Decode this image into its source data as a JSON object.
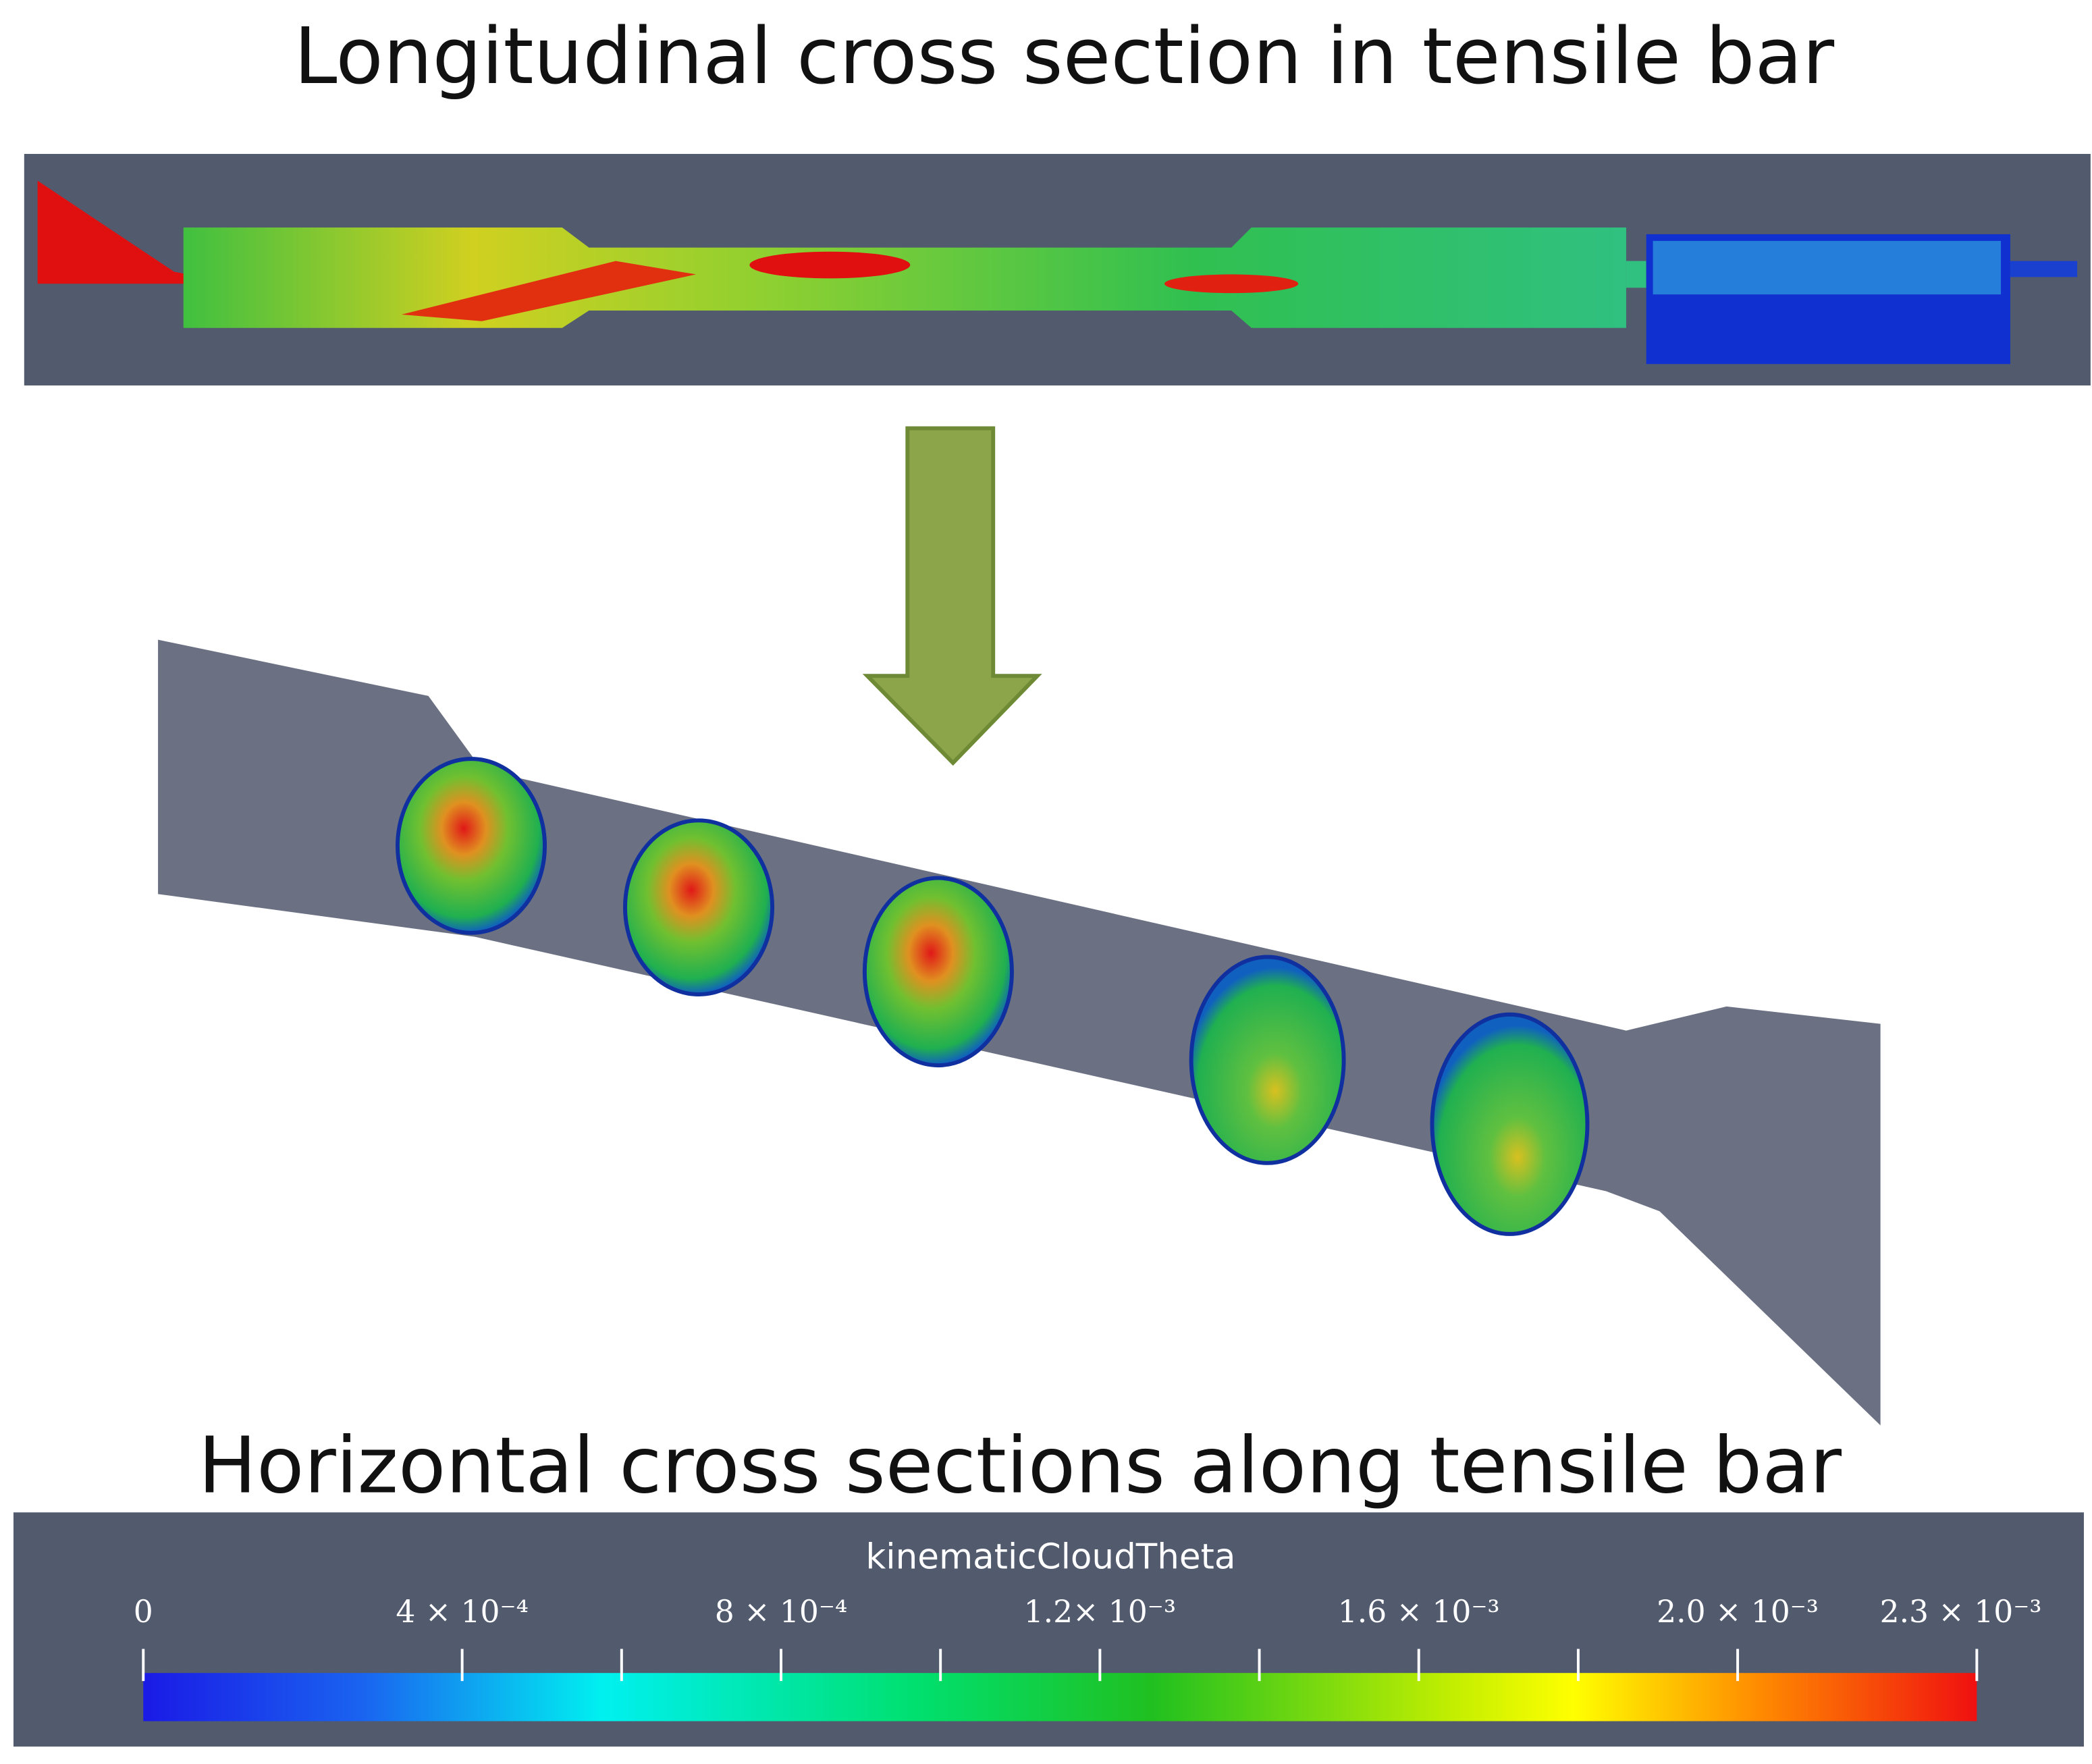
{
  "top_title": "Longitudinal cross section in tensile bar",
  "bottom_title": "Horizontal cross sections along tensile bar",
  "colorbar": {
    "title": "kinematicCloudTheta",
    "lim": [
      0,
      0.0023
    ],
    "ticks": [
      0,
      {
        "value": 0.0004,
        "label": "4 × 10⁻⁴"
      },
      {
        "value": 0.0008,
        "label": "8 × 10⁻⁴"
      },
      {
        "value": 0.0012,
        "label": "1.2× 10⁻³"
      },
      {
        "value": 0.0016,
        "label": "1.6 × 10⁻³"
      },
      {
        "value": 0.002,
        "label": "2.0 × 10⁻³"
      },
      {
        "value": 0.0023,
        "label": "2.3 × 10⁻³"
      }
    ],
    "minor_ticks": [
      0.0006,
      0.001,
      0.0014,
      0.0018
    ]
  }
}
